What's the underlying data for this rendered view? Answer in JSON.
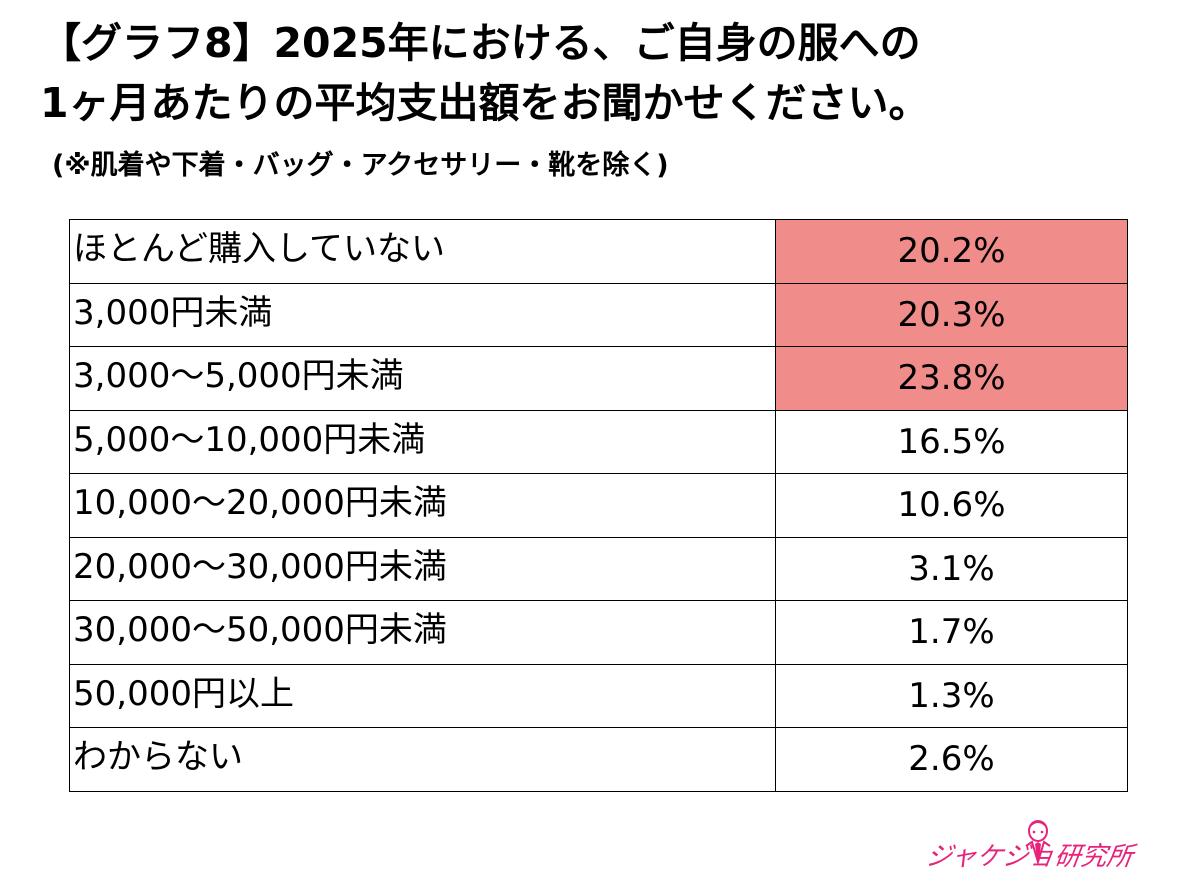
{
  "title_line1": "【グラフ8】2025年における、ご自身の服への",
  "title_line2": "1ヶ月あたりの平均支出額をお聞かせください。",
  "subtitle": "(※肌着や下着・バッグ・アクセサリー・靴を除く)",
  "highlight_color": "#f08c8a",
  "logo": {
    "text": "ジャケジョ研究所",
    "color": "#e8227a",
    "icon": "jacket-figure-icon"
  },
  "chart_data": {
    "type": "table",
    "rows": [
      {
        "label": "ほとんど購入していない",
        "value": "20.2%",
        "highlight": true
      },
      {
        "label": "3,000円未満",
        "value": "20.3%",
        "highlight": true
      },
      {
        "label": "3,000～5,000円未満",
        "value": "23.8%",
        "highlight": true
      },
      {
        "label": "5,000～10,000円未満",
        "value": "16.5%",
        "highlight": false
      },
      {
        "label": "10,000～20,000円未満",
        "value": "10.6%",
        "highlight": false
      },
      {
        "label": "20,000～30,000円未満",
        "value": "3.1%",
        "highlight": false
      },
      {
        "label": "30,000～50,000円未満",
        "value": "1.7%",
        "highlight": false
      },
      {
        "label": "50,000円以上",
        "value": "1.3%",
        "highlight": false
      },
      {
        "label": "わからない",
        "value": "2.6%",
        "highlight": false
      }
    ]
  }
}
